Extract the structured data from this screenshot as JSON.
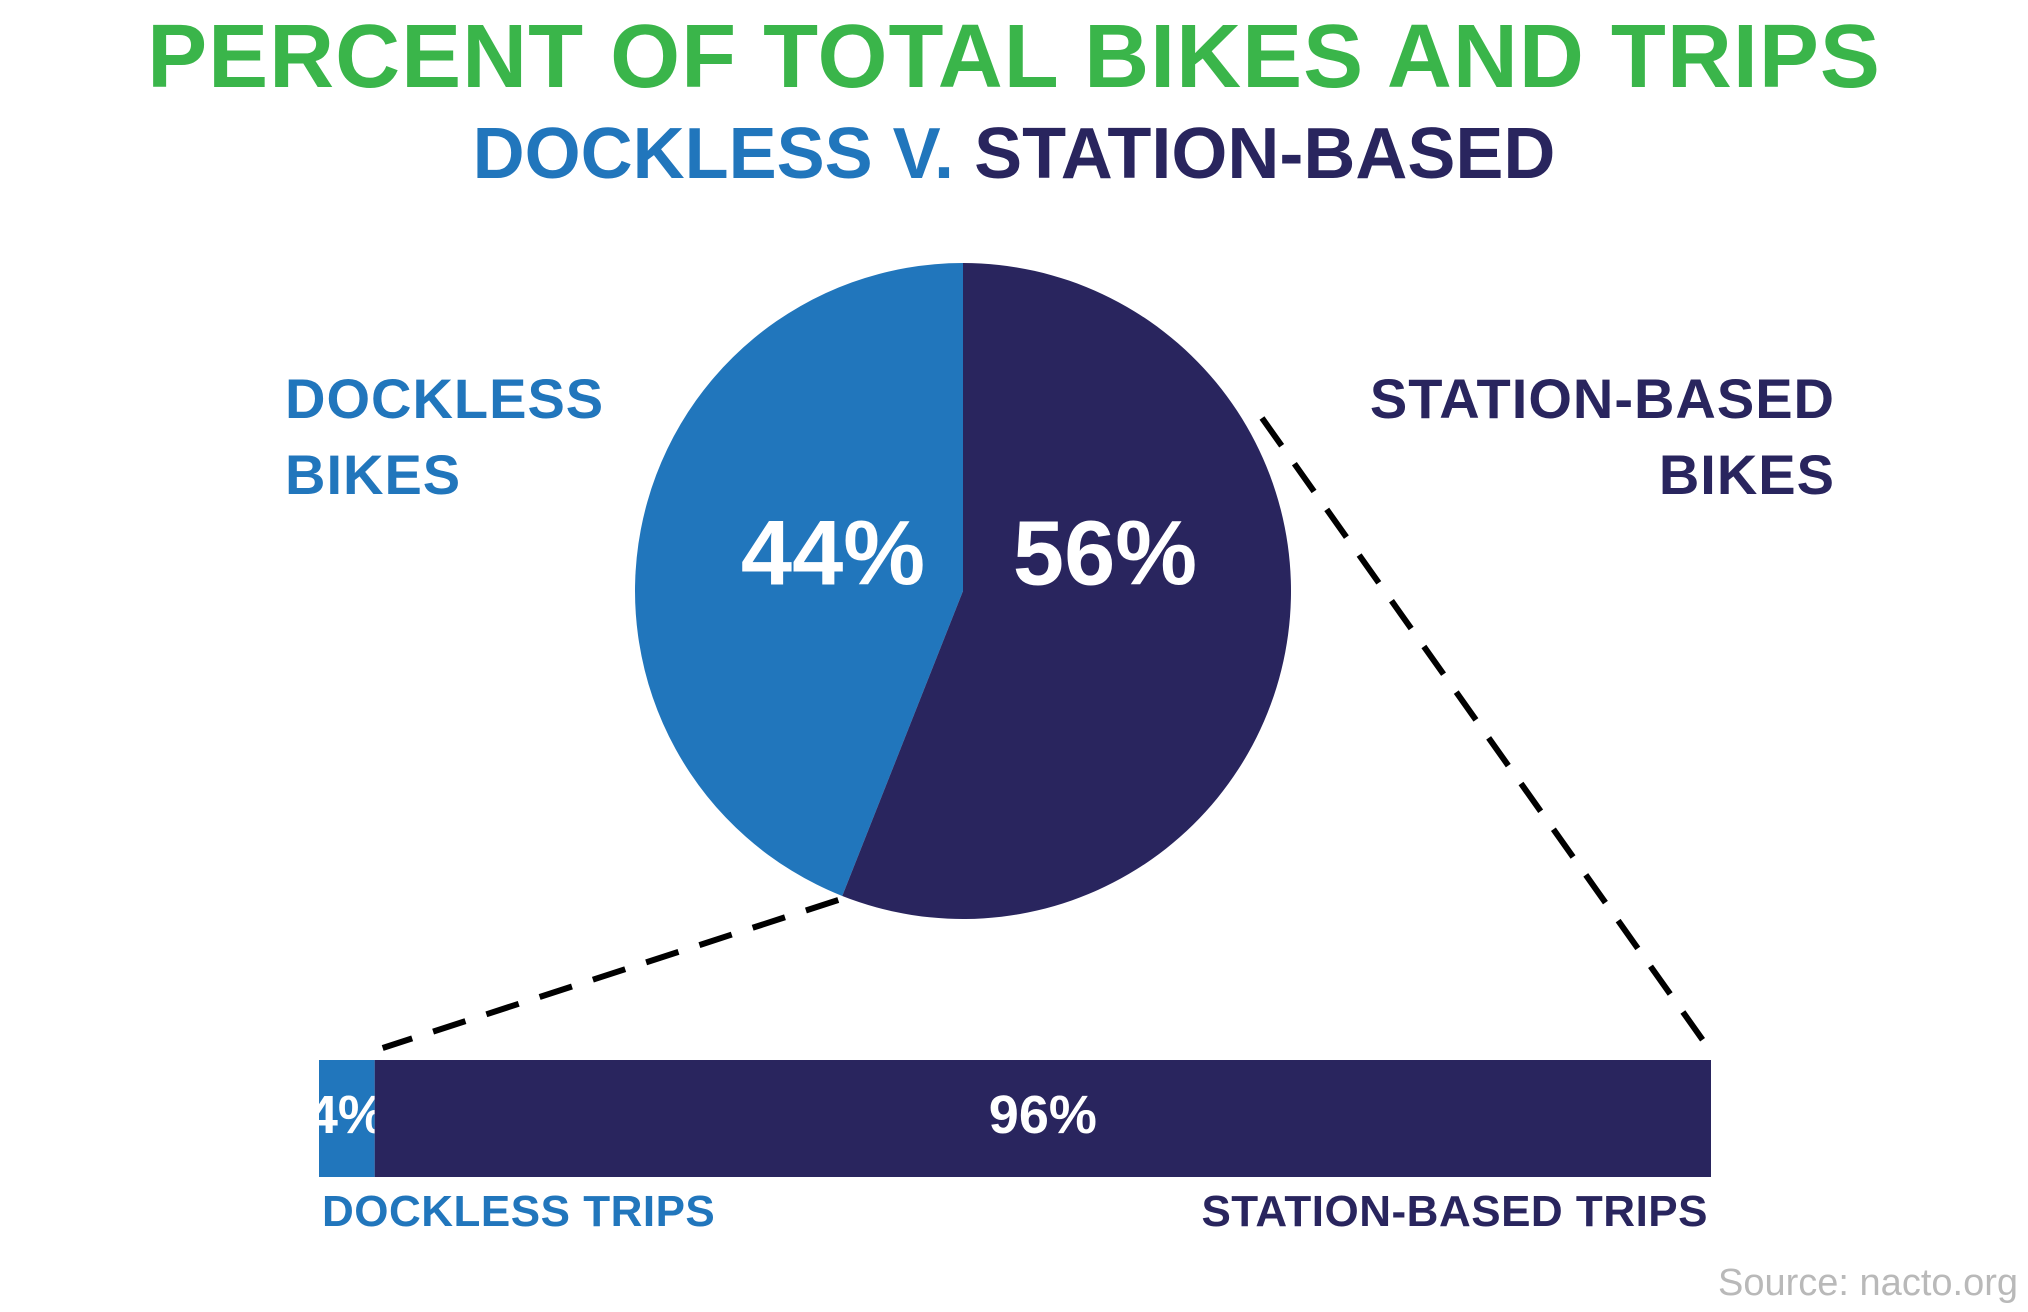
{
  "colors": {
    "green": "#3ab54a",
    "dockless": "#2176bc",
    "station": "#29255e",
    "white": "#ffffff",
    "connector": "#000000"
  },
  "title": "PERCENT OF TOTAL BIKES AND TRIPS",
  "subtitle": {
    "part1": "DOCKLESS V.",
    "part2": "STATION-BASED"
  },
  "labels": {
    "dockless_bikes": [
      "DOCKLESS",
      "BIKES"
    ],
    "station_bikes": [
      "STATION-BASED",
      "BIKES"
    ],
    "dockless_trips": "DOCKLESS TRIPS",
    "station_trips": "STATION-BASED TRIPS"
  },
  "source": "Source: nacto.org",
  "chart_data": [
    {
      "type": "pie",
      "title": "",
      "slices": [
        {
          "label": "DOCKLESS BIKES",
          "value": 44,
          "display": "44%",
          "color": "#2176bc"
        },
        {
          "label": "STATION-BASED BIKES",
          "value": 56,
          "display": "56%",
          "color": "#29255e"
        }
      ]
    },
    {
      "type": "bar",
      "orientation": "horizontal-stacked",
      "title": "",
      "segments": [
        {
          "label": "DOCKLESS TRIPS",
          "value": 4,
          "display": "4%",
          "color": "#2176bc"
        },
        {
          "label": "STATION-BASED TRIPS",
          "value": 96,
          "display": "96%",
          "color": "#29255e"
        }
      ]
    }
  ]
}
